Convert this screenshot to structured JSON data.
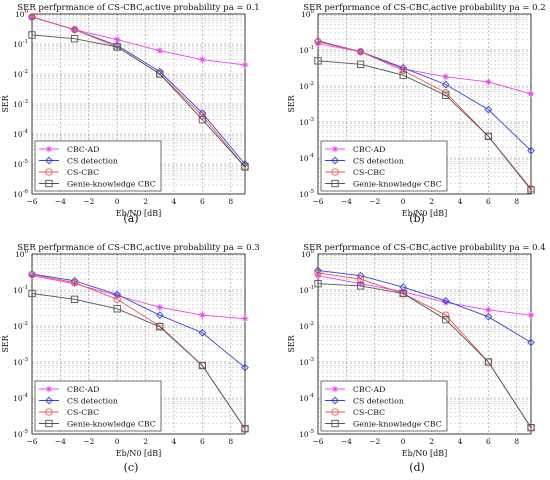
{
  "figure": {
    "panels": [
      {
        "tag": "(a)",
        "title": "SER perfprmance of CS-CBC,active probability pa = 0.1",
        "xlabel": "Eb/N0 [dB]",
        "ylabel": "SER"
      },
      {
        "tag": "(b)",
        "title": "SER perfprmance of CS-CBC,active probability pa = 0.2",
        "xlabel": "Eb/N0 [dB]",
        "ylabel": "SER"
      },
      {
        "tag": "(c)",
        "title": "SER perfprmance of CS-CBC,active probability pa = 0.3",
        "xlabel": "Eb/N0 [dB]",
        "ylabel": "SER"
      },
      {
        "tag": "(d)",
        "title": "SER perfprmance of CS-CBC,active probability pa = 0.4",
        "xlabel": "Eb/N0 [dB]",
        "ylabel": "SER"
      }
    ]
  },
  "styles": {
    "series_colors": [
      "#ee44ee",
      "#3344dd",
      "#ee5555",
      "#555555"
    ],
    "markers": [
      "star",
      "diamond",
      "circle",
      "square"
    ]
  },
  "chart_data": [
    {
      "type": "line",
      "title": "SER perfprmance of CS-CBC,active probability pa = 0.1",
      "xlabel": "Eb/N0 [dB]",
      "ylabel": "SER",
      "x": [
        -6,
        -3,
        0,
        3,
        6,
        9
      ],
      "xlim": [
        -6,
        9
      ],
      "ylim": [
        1e-06,
        1
      ],
      "yscale": "log",
      "grid": true,
      "legend": "bottom-left",
      "xticks": [
        -6,
        -4,
        -2,
        0,
        2,
        4,
        6,
        8
      ],
      "yticks": [
        -6,
        -5,
        -4,
        -3,
        -2,
        -1,
        0
      ],
      "series": [
        {
          "name": "CBC-AD",
          "values": [
            0.8,
            0.3,
            0.14,
            0.06,
            0.03,
            0.02
          ]
        },
        {
          "name": "CS detection",
          "values": [
            0.8,
            0.3,
            0.09,
            0.012,
            0.0005,
            1e-05
          ]
        },
        {
          "name": "CS-CBC",
          "values": [
            0.8,
            0.3,
            0.08,
            0.01,
            0.0004,
            8e-06
          ]
        },
        {
          "name": "Genie-knowledge CBC",
          "values": [
            0.2,
            0.15,
            0.08,
            0.01,
            0.0003,
            8e-06
          ]
        }
      ]
    },
    {
      "type": "line",
      "title": "SER perfprmance of CS-CBC,active probability pa = 0.2",
      "xlabel": "Eb/N0 [dB]",
      "ylabel": "SER",
      "x": [
        -6,
        -3,
        0,
        3,
        6,
        9
      ],
      "xlim": [
        -6,
        9
      ],
      "ylim": [
        1e-05,
        1
      ],
      "yscale": "log",
      "grid": true,
      "legend": "bottom-left",
      "xticks": [
        -6,
        -4,
        -2,
        0,
        2,
        4,
        6,
        8
      ],
      "yticks": [
        -5,
        -4,
        -3,
        -2,
        -1,
        0
      ],
      "series": [
        {
          "name": "CBC-AD",
          "values": [
            0.15,
            0.09,
            0.03,
            0.018,
            0.013,
            0.006
          ]
        },
        {
          "name": "CS detection",
          "values": [
            0.18,
            0.09,
            0.032,
            0.011,
            0.0022,
            0.00016
          ]
        },
        {
          "name": "CS-CBC",
          "values": [
            0.17,
            0.09,
            0.027,
            0.0065,
            0.0004,
            1.4e-05
          ]
        },
        {
          "name": "Genie-knowledge CBC",
          "values": [
            0.05,
            0.04,
            0.02,
            0.0055,
            0.0004,
            1.3e-05
          ]
        }
      ]
    },
    {
      "type": "line",
      "title": "SER perfprmance of CS-CBC,active probability pa = 0.3",
      "xlabel": "Eb/N0 [dB]",
      "ylabel": "SER",
      "x": [
        -6,
        -3,
        0,
        3,
        6,
        9
      ],
      "xlim": [
        -6,
        9
      ],
      "ylim": [
        1e-05,
        1
      ],
      "yscale": "log",
      "grid": true,
      "legend": "bottom-left",
      "xticks": [
        -6,
        -4,
        -2,
        0,
        2,
        4,
        6,
        8
      ],
      "yticks": [
        -5,
        -4,
        -3,
        -2,
        -1,
        0
      ],
      "series": [
        {
          "name": "CBC-AD",
          "values": [
            0.25,
            0.15,
            0.07,
            0.033,
            0.02,
            0.016
          ]
        },
        {
          "name": "CS detection",
          "values": [
            0.28,
            0.18,
            0.075,
            0.02,
            0.0065,
            0.0007
          ]
        },
        {
          "name": "CS-CBC",
          "values": [
            0.27,
            0.16,
            0.055,
            0.01,
            0.0008,
            1.4e-05
          ]
        },
        {
          "name": "Genie-knowledge CBC",
          "values": [
            0.08,
            0.055,
            0.03,
            0.0095,
            0.0008,
            1.4e-05
          ]
        }
      ]
    },
    {
      "type": "line",
      "title": "SER perfprmance of CS-CBC,active probability pa = 0.4",
      "xlabel": "Eb/N0 [dB]",
      "ylabel": "SER",
      "x": [
        -6,
        -3,
        0,
        3,
        6,
        9
      ],
      "xlim": [
        -6,
        9
      ],
      "ylim": [
        1e-05,
        1
      ],
      "yscale": "log",
      "grid": true,
      "legend": "bottom-left",
      "xticks": [
        -6,
        -4,
        -2,
        0,
        2,
        4,
        6,
        8
      ],
      "yticks": [
        -5,
        -4,
        -3,
        -2,
        -1,
        0
      ],
      "series": [
        {
          "name": "CBC-AD",
          "values": [
            0.25,
            0.15,
            0.09,
            0.045,
            0.028,
            0.02
          ]
        },
        {
          "name": "CS detection",
          "values": [
            0.35,
            0.25,
            0.12,
            0.05,
            0.018,
            0.0035
          ]
        },
        {
          "name": "CS-CBC",
          "values": [
            0.3,
            0.2,
            0.08,
            0.02,
            0.001,
            1.5e-05
          ]
        },
        {
          "name": "Genie-knowledge CBC",
          "values": [
            0.15,
            0.13,
            0.08,
            0.015,
            0.001,
            1.5e-05
          ]
        }
      ]
    }
  ]
}
